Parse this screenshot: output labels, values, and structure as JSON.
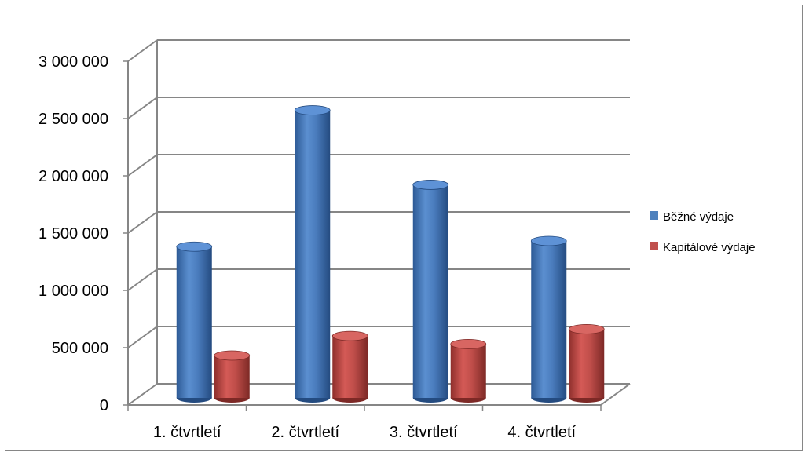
{
  "chart_data": {
    "type": "bar",
    "categories": [
      "1. čtvrtletí",
      "2. čtvrtletí",
      "3. čtvrtletí",
      "4. čtvrtletí"
    ],
    "series": [
      {
        "name": "Běžné výdaje",
        "color": "#4F81BD",
        "values": [
          1320000,
          2510000,
          1860000,
          1370000
        ]
      },
      {
        "name": "Kapitálové výdaje",
        "color": "#C0504D",
        "values": [
          370000,
          540000,
          470000,
          600000
        ]
      }
    ],
    "yticks": [
      "0",
      "500 000",
      "1 000 000",
      "1 500 000",
      "2 000 000",
      "2 500 000",
      "3 000 000"
    ],
    "ylim": [
      0,
      3000000
    ],
    "grid": true,
    "legend": "right",
    "style": "3d-cylinder"
  }
}
